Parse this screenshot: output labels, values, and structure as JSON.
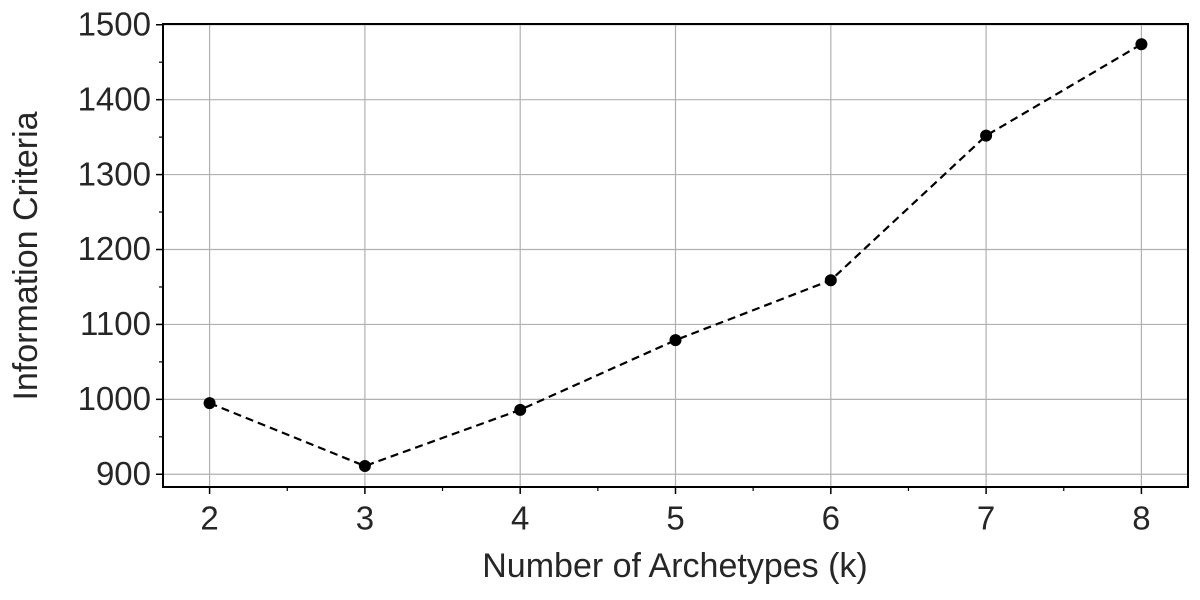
{
  "chart_data": {
    "type": "line",
    "x_label": "Number of Archetypes (k)",
    "y_label": "Information Criteria",
    "x": [
      2,
      3,
      4,
      5,
      6,
      7,
      8
    ],
    "series": [
      {
        "color": "#000000",
        "values": [
          995,
          911,
          986,
          1079,
          1159,
          1352,
          1474
        ]
      }
    ],
    "xlim": [
      1.7,
      8.3
    ],
    "ylim": [
      883,
      1501
    ],
    "xticks": [
      2,
      3,
      4,
      5,
      6,
      7,
      8
    ],
    "yticks": [
      900,
      1000,
      1100,
      1200,
      1300,
      1400,
      1500
    ],
    "xminorticks": [
      2.5,
      3.5,
      4.5,
      5.5,
      6.5,
      7.5
    ],
    "yminorticks": [
      950,
      1050,
      1150,
      1250,
      1350,
      1450
    ],
    "grid": true,
    "line_style": "dashed",
    "marker": "circle"
  }
}
